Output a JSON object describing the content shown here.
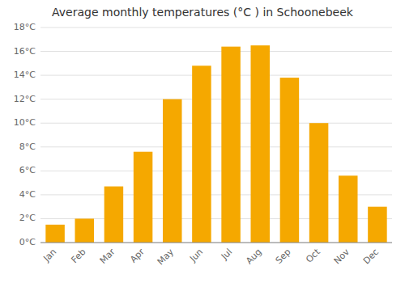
{
  "chart_data": {
    "type": "bar",
    "title": "Average monthly temperatures (°C ) in Schoonebeek",
    "categories": [
      "Jan",
      "Feb",
      "Mar",
      "Apr",
      "May",
      "Jun",
      "Jul",
      "Aug",
      "Sep",
      "Oct",
      "Nov",
      "Dec"
    ],
    "values": [
      1.5,
      2.0,
      4.7,
      7.6,
      12.0,
      14.8,
      16.4,
      16.5,
      13.8,
      10.0,
      5.6,
      3.0
    ],
    "color": "#F5A800",
    "ylim": [
      0,
      18
    ],
    "yticks": [
      {
        "value": 0,
        "label": "0°C"
      },
      {
        "value": 2,
        "label": "2°C"
      },
      {
        "value": 4,
        "label": "4°C"
      },
      {
        "value": 6,
        "label": "6°C"
      },
      {
        "value": 8,
        "label": "8°C"
      },
      {
        "value": 10,
        "label": "10°C"
      },
      {
        "value": 12,
        "label": "12°C"
      },
      {
        "value": 14,
        "label": "14°C"
      },
      {
        "value": 16,
        "label": "16°C"
      },
      {
        "value": 18,
        "label": "18°C"
      }
    ],
    "grid": true
  }
}
